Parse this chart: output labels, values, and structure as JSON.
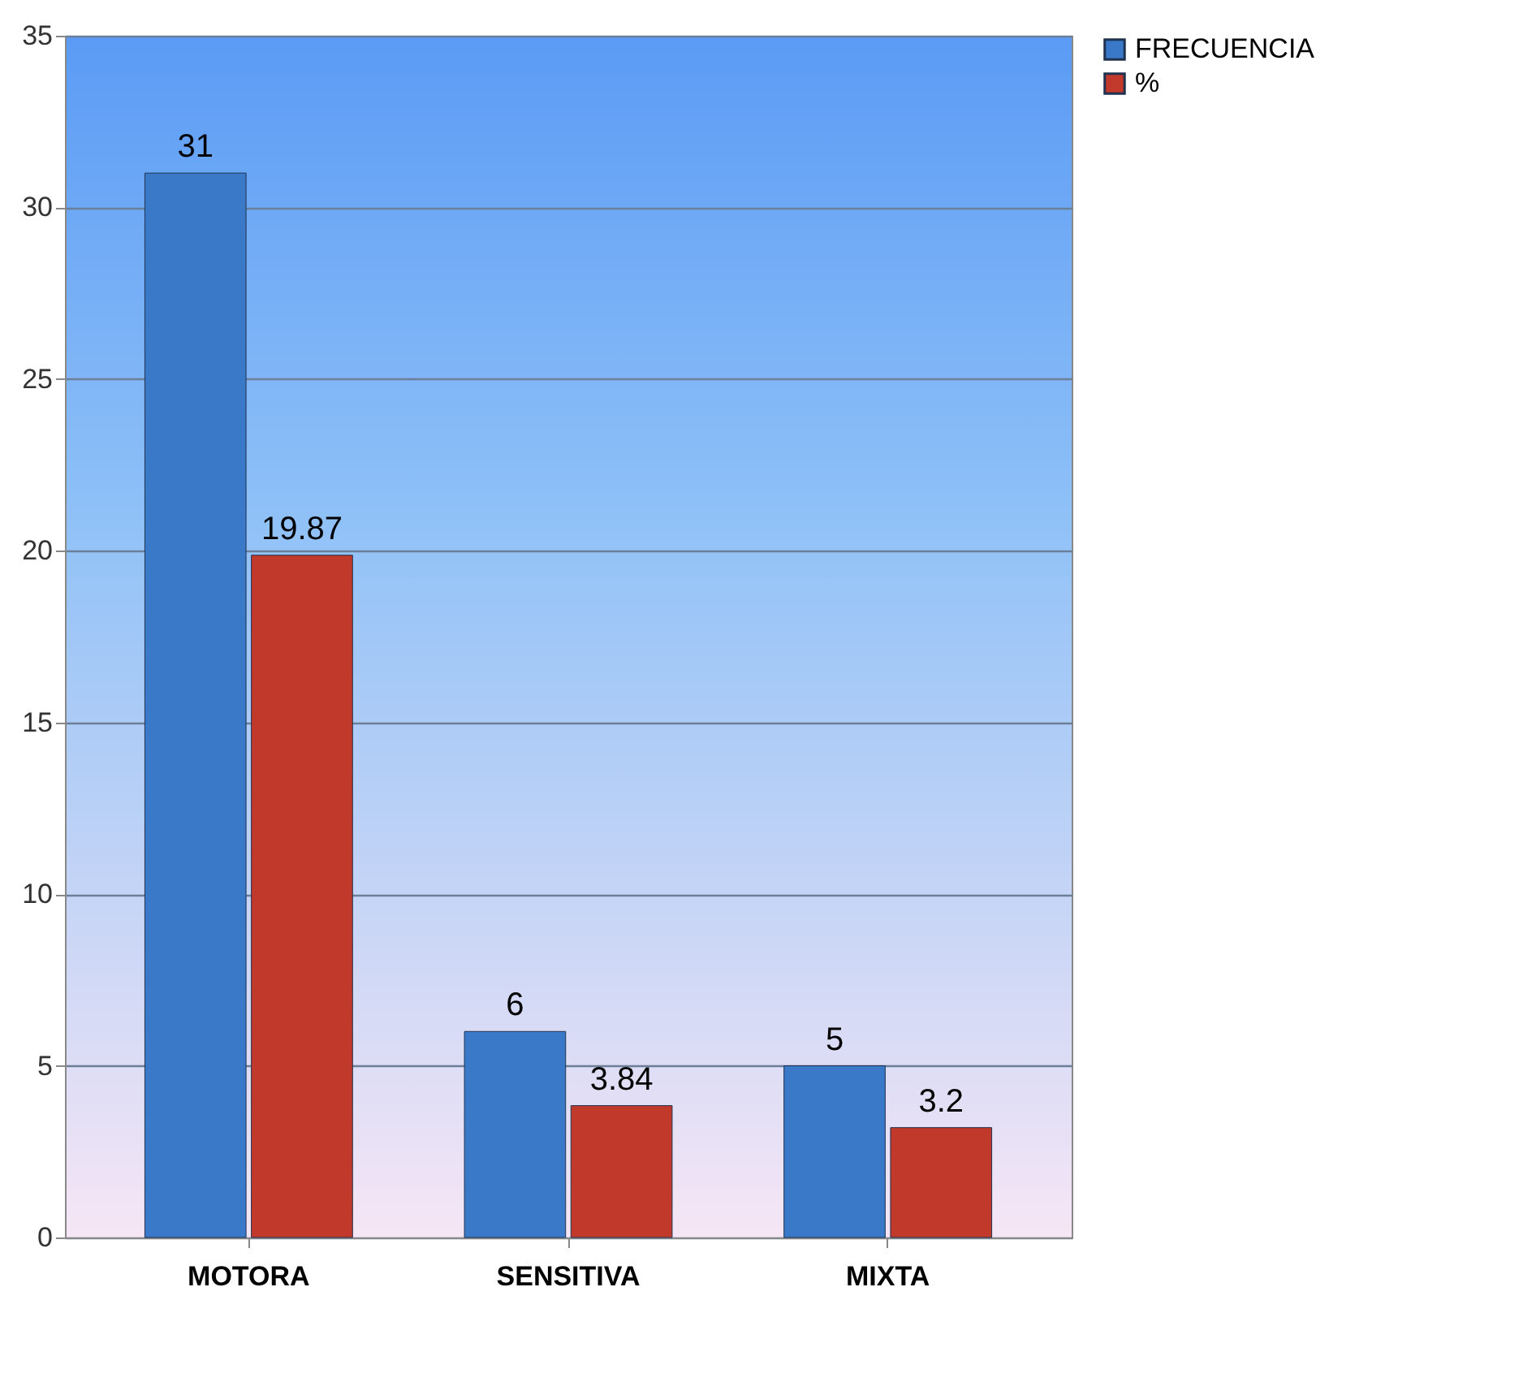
{
  "chart_data": {
    "type": "bar",
    "categories": [
      "MOTORA",
      "SENSITIVA",
      "MIXTA"
    ],
    "series": [
      {
        "name": "FRECUENCIA",
        "color": "#3a78c8",
        "values": [
          31,
          6,
          5
        ],
        "value_labels": [
          "31",
          "6",
          "5"
        ]
      },
      {
        "name": "%",
        "color": "#c0392b",
        "values": [
          19.87,
          3.84,
          3.2
        ],
        "value_labels": [
          "19.87",
          "3.84",
          "3.2"
        ]
      }
    ],
    "ylim": [
      0,
      35
    ],
    "yticks": [
      0,
      5,
      10,
      15,
      20,
      25,
      30,
      35
    ],
    "grid": "y",
    "legend": "right"
  }
}
